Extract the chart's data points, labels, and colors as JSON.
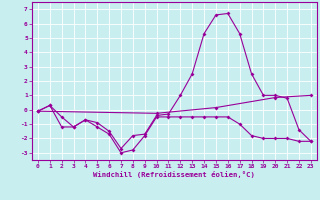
{
  "xlabel": "Windchill (Refroidissement éolien,°C)",
  "bg_color": "#c8eef0",
  "line_color": "#990099",
  "grid_color": "#ffffff",
  "x_ticks": [
    0,
    1,
    2,
    3,
    4,
    5,
    6,
    7,
    8,
    9,
    10,
    11,
    12,
    13,
    14,
    15,
    16,
    17,
    18,
    19,
    20,
    21,
    22,
    23
  ],
  "y_ticks": [
    -3,
    -2,
    -1,
    0,
    1,
    2,
    3,
    4,
    5,
    6,
    7
  ],
  "ylim": [
    -3.5,
    7.5
  ],
  "xlim": [
    -0.5,
    23.5
  ],
  "line1_x": [
    0,
    1,
    2,
    3,
    4,
    5,
    6,
    7,
    8,
    9,
    10,
    11,
    12,
    13,
    14,
    15,
    16,
    17,
    18,
    19,
    20,
    21,
    22,
    23
  ],
  "line1_y": [
    -0.1,
    0.3,
    -0.5,
    -1.2,
    -0.7,
    -0.9,
    -1.5,
    -2.7,
    -1.8,
    -1.7,
    -0.4,
    -0.3,
    1.0,
    2.5,
    5.3,
    6.6,
    6.7,
    5.3,
    2.5,
    1.0,
    1.0,
    0.8,
    -1.4,
    -2.2
  ],
  "line2_x": [
    0,
    1,
    2,
    3,
    4,
    5,
    6,
    7,
    8,
    9,
    10,
    11,
    12,
    13,
    14,
    15,
    16,
    17,
    18,
    19,
    20,
    21,
    22,
    23
  ],
  "line2_y": [
    -0.1,
    0.3,
    -1.2,
    -1.2,
    -0.7,
    -1.2,
    -1.7,
    -3.0,
    -2.8,
    -1.8,
    -0.5,
    -0.5,
    -0.5,
    -0.5,
    -0.5,
    -0.5,
    -0.5,
    -1.0,
    -1.8,
    -2.0,
    -2.0,
    -2.0,
    -2.2,
    -2.2
  ],
  "line3_x": [
    0,
    10,
    15,
    20,
    23
  ],
  "line3_y": [
    -0.1,
    -0.25,
    0.15,
    0.85,
    1.0
  ]
}
